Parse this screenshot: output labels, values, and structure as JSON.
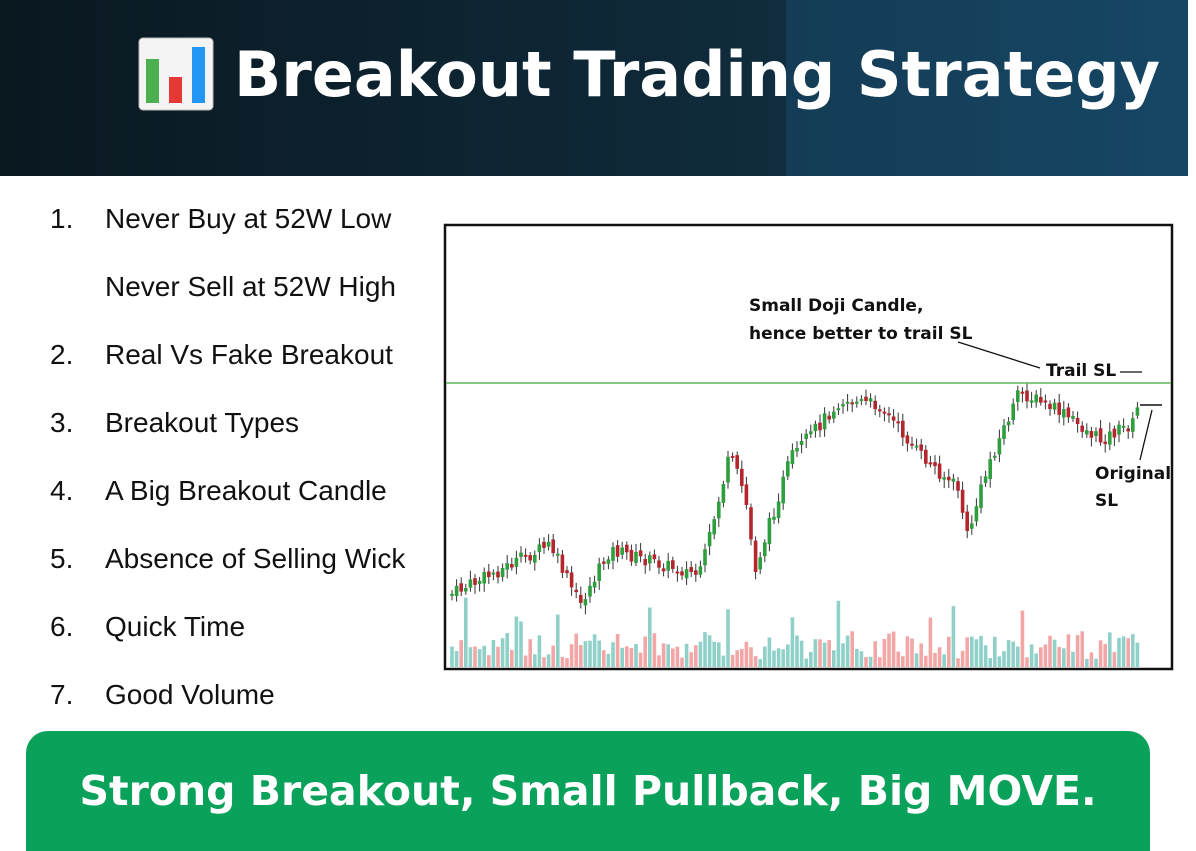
{
  "header": {
    "title": "Breakout Trading Strategy"
  },
  "list": {
    "items": [
      {
        "number": "1.",
        "lines": [
          "Never Buy at 52W Low",
          "Never Sell at 52W High"
        ]
      },
      {
        "number": "2.",
        "lines": [
          "Real Vs Fake Breakout"
        ]
      },
      {
        "number": "3.",
        "lines": [
          "Breakout Types"
        ]
      },
      {
        "number": "4.",
        "lines": [
          "A Big Breakout Candle"
        ]
      },
      {
        "number": "5.",
        "lines": [
          "Absence of Selling Wick"
        ]
      },
      {
        "number": "6.",
        "lines": [
          "Quick Time"
        ]
      },
      {
        "number": "7.",
        "lines": [
          "Good Volume"
        ]
      }
    ]
  },
  "figure": {
    "annotations": [
      "Small Doji Candle,",
      "hence better to trail SL",
      "Trail SL",
      "Original",
      "SL"
    ]
  },
  "banner": "Strong Breakout, Small Pullback, Big MOVE."
}
